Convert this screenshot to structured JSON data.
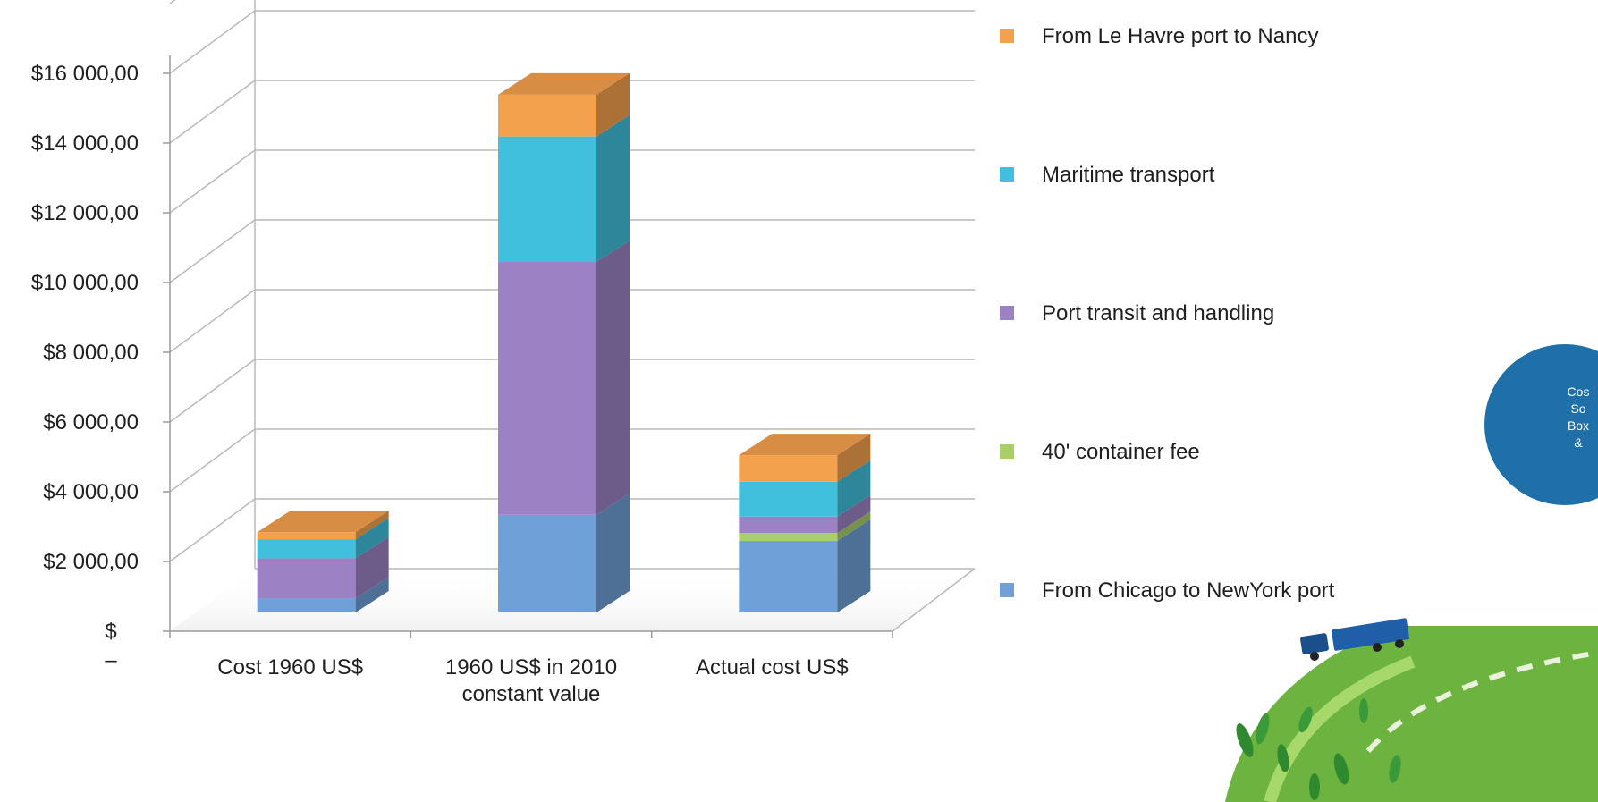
{
  "chart_data": {
    "type": "bar",
    "stacked": true,
    "three_d": true,
    "categories": [
      [
        "Cost 1960 US$"
      ],
      [
        "1960 US$ in 2010",
        "constant value"
      ],
      [
        "Actual cost US$"
      ]
    ],
    "series": [
      {
        "name": "From Chicago  to NewYork  port",
        "values": [
          400,
          2800,
          2050
        ],
        "color": "#6fa0d8"
      },
      {
        "name": "40' container  fee",
        "values": [
          0,
          0,
          230
        ],
        "color": "#a9cf6b"
      },
      {
        "name": "Port transit  and handling",
        "values": [
          1150,
          7250,
          470
        ],
        "color": "#9c82c4"
      },
      {
        "name": "Maritime  transport",
        "values": [
          550,
          3600,
          1000
        ],
        "color": "#41c0de"
      },
      {
        "name": "From Le  Havre port to  Nancy",
        "values": [
          200,
          1200,
          760
        ],
        "color": "#f4a14d"
      }
    ],
    "y_ticks": [
      "$",
      "$2 000,00",
      "$4 000,00",
      "$6 000,00",
      "$8 000,00",
      "$10 000,00",
      "$12 000,00",
      "$14 000,00",
      "$16 000,00"
    ],
    "y_zero_dash": "–",
    "ylim": [
      0,
      16000
    ],
    "y_step": 2000,
    "grid": true,
    "legend_position": "right",
    "legend_order": [
      4,
      3,
      2,
      1,
      0
    ],
    "title": "",
    "xlabel": "",
    "ylabel": ""
  },
  "badge": {
    "lines": [
      "Cos",
      "So",
      "Box",
      "&"
    ],
    "color": "#1f6fa8"
  }
}
